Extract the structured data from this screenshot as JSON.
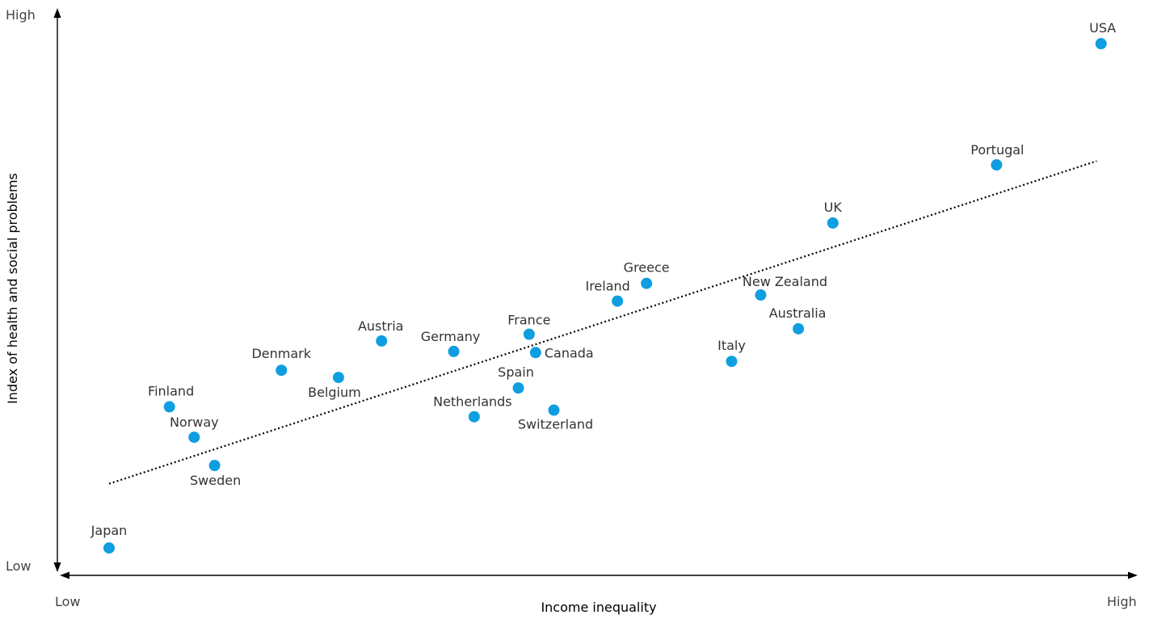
{
  "chart_data": {
    "type": "scatter",
    "xlabel": "Income inequality",
    "ylabel": "Index of health and social problems",
    "x_ends": {
      "low": "Low",
      "high": "High"
    },
    "y_ends": {
      "low": "Low",
      "high": "High"
    },
    "point_color": "#0f9ee0",
    "xlim": [
      0,
      100
    ],
    "ylim": [
      0,
      100
    ],
    "trend_line": {
      "x": [
        4.5,
        96.2
      ],
      "y": [
        14.8,
        73.1
      ],
      "style": "dotted"
    },
    "points": [
      {
        "label": "Japan",
        "x": 4.5,
        "y": 3.2
      },
      {
        "label": "Finland",
        "x": 10.1,
        "y": 28.7
      },
      {
        "label": "Norway",
        "x": 12.4,
        "y": 23.2
      },
      {
        "label": "Sweden",
        "x": 14.3,
        "y": 18.1
      },
      {
        "label": "Denmark",
        "x": 20.5,
        "y": 35.3
      },
      {
        "label": "Belgium",
        "x": 25.8,
        "y": 34.0
      },
      {
        "label": "Austria",
        "x": 29.8,
        "y": 40.6
      },
      {
        "label": "Germany",
        "x": 36.5,
        "y": 38.7
      },
      {
        "label": "Netherlands",
        "x": 38.4,
        "y": 26.9
      },
      {
        "label": "Spain",
        "x": 42.5,
        "y": 32.1
      },
      {
        "label": "France",
        "x": 43.5,
        "y": 41.8
      },
      {
        "label": "Canada",
        "x": 44.1,
        "y": 38.5
      },
      {
        "label": "Switzerland",
        "x": 45.8,
        "y": 28.1
      },
      {
        "label": "Ireland",
        "x": 51.7,
        "y": 47.8
      },
      {
        "label": "Greece",
        "x": 54.4,
        "y": 51.0
      },
      {
        "label": "Italy",
        "x": 62.3,
        "y": 36.9
      },
      {
        "label": "New Zealand",
        "x": 65.0,
        "y": 48.9
      },
      {
        "label": "Australia",
        "x": 68.5,
        "y": 42.8
      },
      {
        "label": "UK",
        "x": 71.7,
        "y": 61.9
      },
      {
        "label": "Portugal",
        "x": 86.9,
        "y": 72.4
      },
      {
        "label": "USA",
        "x": 96.6,
        "y": 94.3
      }
    ]
  }
}
